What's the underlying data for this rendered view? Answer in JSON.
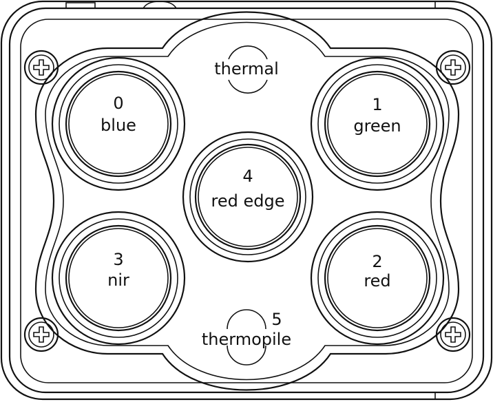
{
  "colors": {
    "stroke": "#111111",
    "background": "#ffffff"
  },
  "sensors": {
    "blue": {
      "number": "0",
      "name": "blue"
    },
    "green": {
      "number": "1",
      "name": "green"
    },
    "red": {
      "number": "2",
      "name": "red"
    },
    "nir": {
      "number": "3",
      "name": "nir"
    },
    "red_edge": {
      "number": "4",
      "name": "red edge"
    },
    "thermopile": {
      "number": "5",
      "name": "thermopile"
    },
    "thermal": {
      "name": "thermal"
    }
  }
}
